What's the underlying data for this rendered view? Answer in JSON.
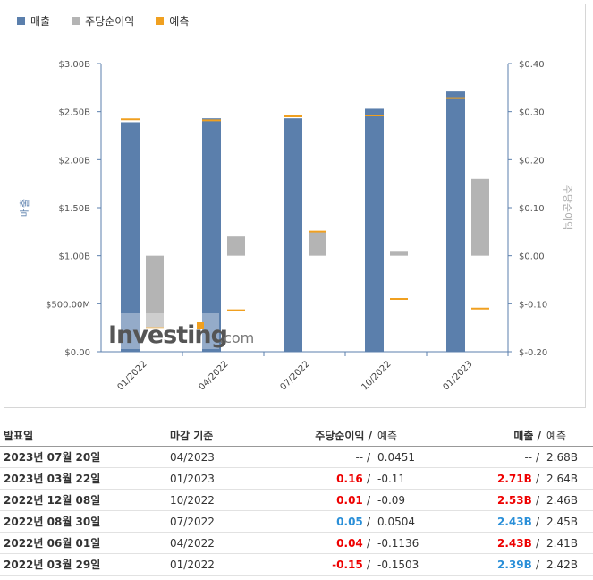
{
  "legend": [
    {
      "label": "매출",
      "color": "#5b7fac"
    },
    {
      "label": "주당순이익",
      "color": "#b4b4b4"
    },
    {
      "label": "예측",
      "color": "#f0a020"
    }
  ],
  "watermark": {
    "brand": "Investing",
    "suffix": ".com"
  },
  "chart_data": {
    "type": "bar",
    "categories": [
      "01/2022",
      "04/2022",
      "07/2022",
      "10/2022",
      "01/2023"
    ],
    "series": [
      {
        "name": "매출",
        "axis": "left",
        "values": [
          2.39,
          2.43,
          2.43,
          2.53,
          2.71
        ],
        "color": "#5b7fac"
      },
      {
        "name": "주당순이익",
        "axis": "right",
        "values": [
          -0.15,
          0.04,
          0.05,
          0.01,
          0.16
        ],
        "color": "#b4b4b4"
      },
      {
        "name": "예측",
        "axis": "left",
        "values": [
          2.42,
          2.41,
          2.45,
          2.46,
          2.64
        ],
        "color": "#f0a020",
        "marker": "dash"
      },
      {
        "name": "예측",
        "axis": "right",
        "values": [
          -0.1503,
          -0.1136,
          0.0504,
          -0.09,
          -0.11
        ],
        "color": "#f0a020",
        "marker": "dash"
      }
    ],
    "y_left": {
      "label": "매출",
      "ticks": [
        "$0.00",
        "$500.00M",
        "$1.00B",
        "$1.50B",
        "$2.00B",
        "$2.50B",
        "$3.00B"
      ],
      "range": [
        0,
        3.0
      ]
    },
    "y_right": {
      "label": "주당순이익",
      "ticks": [
        "$-0.20",
        "$-0.10",
        "$0.00",
        "$0.10",
        "$0.20",
        "$0.30",
        "$0.40"
      ],
      "range": [
        -0.2,
        0.4
      ]
    }
  },
  "table": {
    "headers": {
      "date": "발표일",
      "period": "마감 기준",
      "eps": "주당순이익",
      "eps_fc": "예측",
      "rev": "매출",
      "rev_fc": "예측",
      "slash": "/"
    },
    "rows": [
      {
        "date": "2023년 07월 20일",
        "period": "04/2023",
        "eps": "--",
        "eps_fc": "0.0451",
        "rev": "--",
        "rev_fc": "2.68B",
        "eps_color": "flat",
        "rev_color": "flat"
      },
      {
        "date": "2023년 03월 22일",
        "period": "01/2023",
        "eps": "0.16",
        "eps_fc": "-0.11",
        "rev": "2.71B",
        "rev_fc": "2.64B",
        "eps_color": "red",
        "rev_color": "red"
      },
      {
        "date": "2022년 12월 08일",
        "period": "10/2022",
        "eps": "0.01",
        "eps_fc": "-0.09",
        "rev": "2.53B",
        "rev_fc": "2.46B",
        "eps_color": "red",
        "rev_color": "red"
      },
      {
        "date": "2022년 08월 30일",
        "period": "07/2022",
        "eps": "0.05",
        "eps_fc": "0.0504",
        "rev": "2.43B",
        "rev_fc": "2.45B",
        "eps_color": "blue",
        "rev_color": "blue"
      },
      {
        "date": "2022년 06월 01일",
        "period": "04/2022",
        "eps": "0.04",
        "eps_fc": "-0.1136",
        "rev": "2.43B",
        "rev_fc": "2.41B",
        "eps_color": "red",
        "rev_color": "red"
      },
      {
        "date": "2022년 03월 29일",
        "period": "01/2022",
        "eps": "-0.15",
        "eps_fc": "-0.1503",
        "rev": "2.39B",
        "rev_fc": "2.42B",
        "eps_color": "red",
        "rev_color": "blue"
      }
    ]
  }
}
